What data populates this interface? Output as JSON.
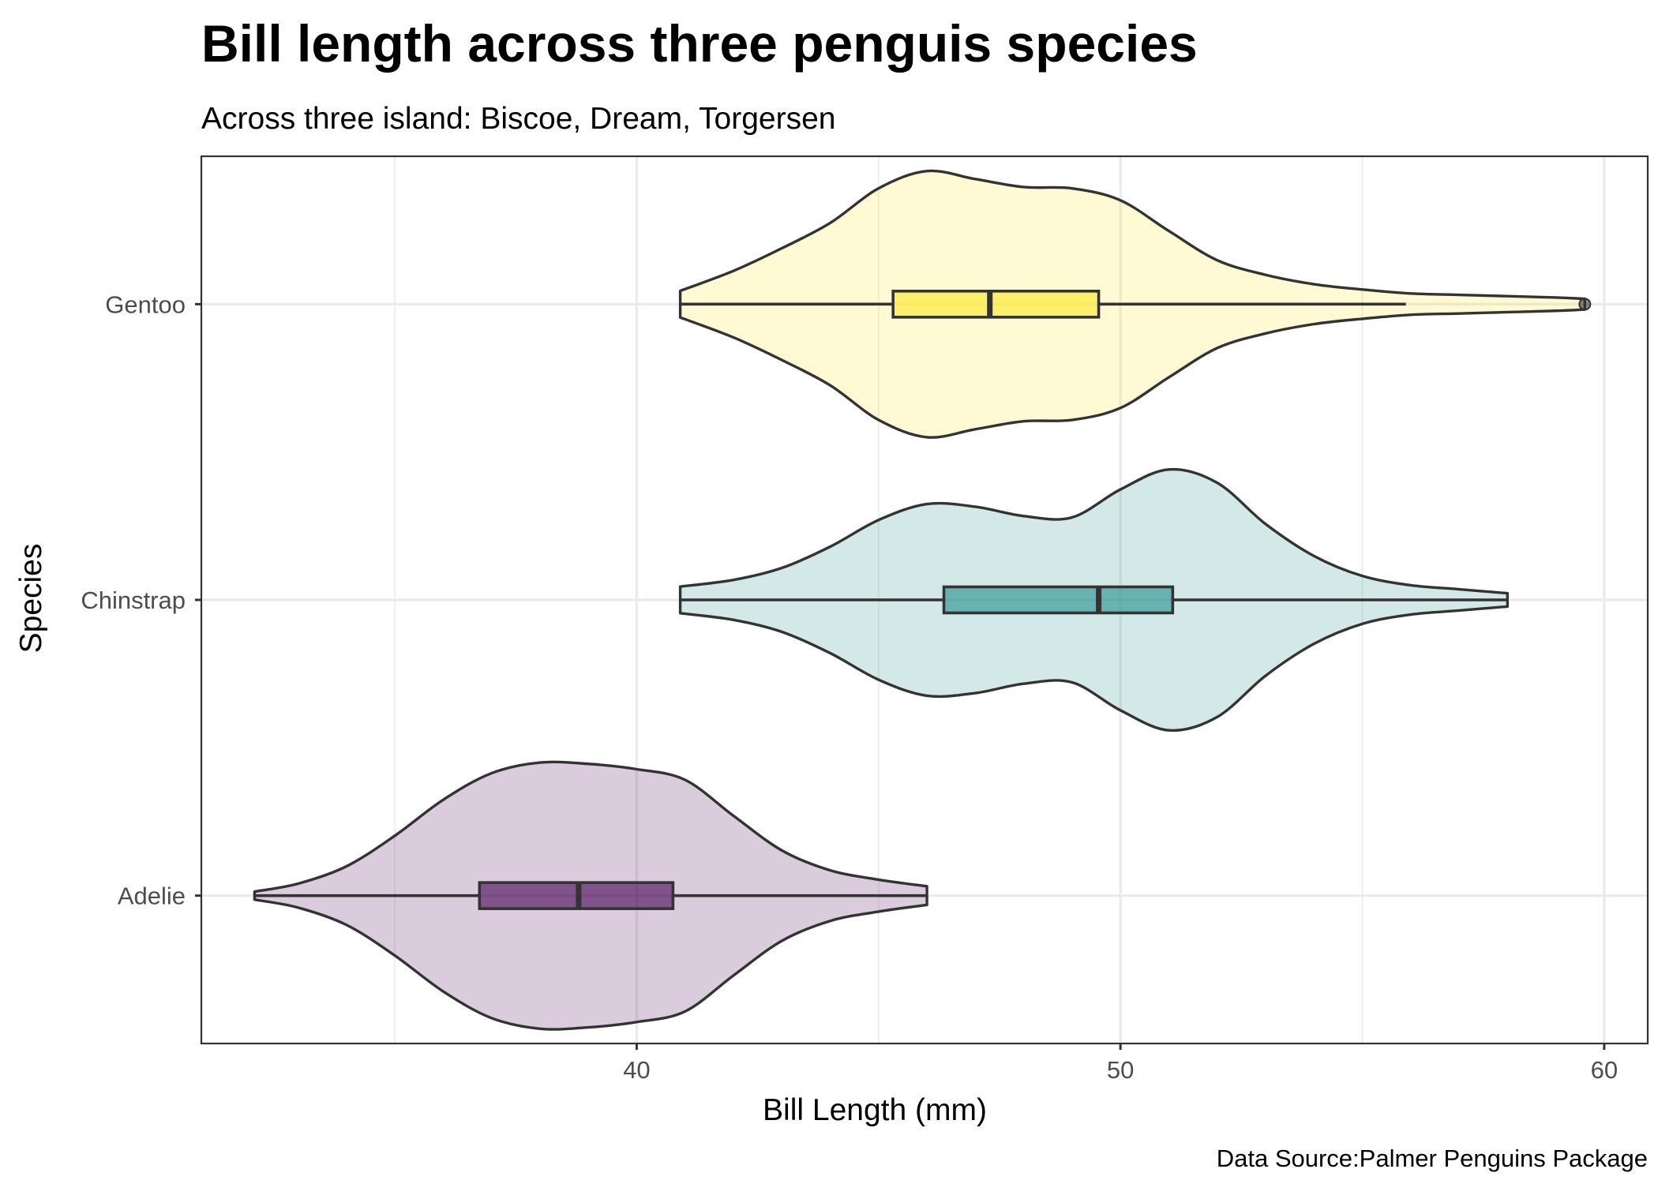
{
  "chart_data": {
    "type": "violin",
    "title": "Bill length across three penguis species",
    "subtitle": "Across three island: Biscoe, Dream, Torgersen",
    "xlabel": "Bill Length (mm)",
    "ylabel": "Species",
    "caption": "Data Source:Palmer Penguins Package",
    "xlim": [
      31.0,
      60.9
    ],
    "x_ticks": [
      40,
      50,
      60
    ],
    "x_minor_ticks": [
      35,
      45,
      55
    ],
    "grid": true,
    "legend": "none",
    "categories": [
      "Adelie",
      "Chinstrap",
      "Gentoo"
    ],
    "series": [
      {
        "category": "Adelie",
        "color": "#440154",
        "box": {
          "min": 32.1,
          "q1": 36.75,
          "median": 38.8,
          "q3": 40.75,
          "max": 46.0,
          "outliers": []
        },
        "density": {
          "x": [
            32.1,
            33.0,
            34.0,
            35.0,
            36.0,
            37.0,
            38.0,
            39.0,
            40.0,
            41.0,
            42.0,
            43.0,
            44.0,
            45.0,
            46.0
          ],
          "w": [
            0.03,
            0.09,
            0.22,
            0.45,
            0.72,
            0.92,
            1.0,
            0.99,
            0.95,
            0.87,
            0.6,
            0.34,
            0.19,
            0.12,
            0.07
          ]
        }
      },
      {
        "category": "Chinstrap",
        "color": "#21908c",
        "box": {
          "min": 40.9,
          "q1": 46.35,
          "median": 49.55,
          "q3": 51.08,
          "max": 58.0,
          "outliers": []
        },
        "density": {
          "x": [
            40.9,
            42.0,
            43.0,
            44.0,
            45.0,
            46.0,
            47.0,
            48.0,
            49.0,
            50.0,
            51.0,
            52.0,
            53.0,
            54.0,
            55.0,
            56.0,
            57.0,
            58.0
          ],
          "w": [
            0.1,
            0.15,
            0.24,
            0.4,
            0.6,
            0.72,
            0.7,
            0.63,
            0.62,
            0.83,
            0.98,
            0.88,
            0.57,
            0.33,
            0.18,
            0.11,
            0.08,
            0.05
          ]
        }
      },
      {
        "category": "Gentoo",
        "color": "#fde725",
        "box": {
          "min": 40.9,
          "q1": 45.3,
          "median": 47.3,
          "q3": 49.55,
          "max": 55.9,
          "outliers": [
            59.6
          ]
        },
        "density": {
          "x": [
            40.9,
            42.0,
            43.0,
            44.0,
            45.0,
            46.0,
            47.0,
            48.0,
            49.0,
            50.0,
            51.0,
            52.0,
            53.0,
            54.0,
            55.0,
            56.0,
            57.0,
            58.0,
            59.0,
            59.6
          ],
          "w": [
            0.1,
            0.25,
            0.42,
            0.61,
            0.87,
            1.0,
            0.94,
            0.88,
            0.87,
            0.78,
            0.55,
            0.33,
            0.22,
            0.15,
            0.11,
            0.08,
            0.07,
            0.06,
            0.05,
            0.04
          ]
        }
      }
    ]
  }
}
